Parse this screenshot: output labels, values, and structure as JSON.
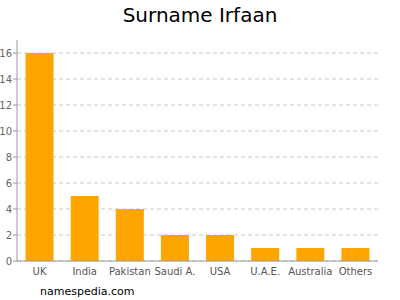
{
  "chart_data": {
    "type": "bar",
    "title": "Surname Irfaan",
    "categories": [
      "UK",
      "India",
      "Pakistan",
      "Saudi A.",
      "USA",
      "U.A.E.",
      "Australia",
      "Others"
    ],
    "values": [
      16,
      5,
      4,
      2,
      2,
      1,
      1,
      1
    ],
    "color": "#ffa500",
    "ylim": [
      0,
      17
    ],
    "yticks": [
      0,
      2,
      4,
      6,
      8,
      10,
      12,
      14,
      16
    ],
    "grid": true,
    "source": "namespedia.com"
  }
}
